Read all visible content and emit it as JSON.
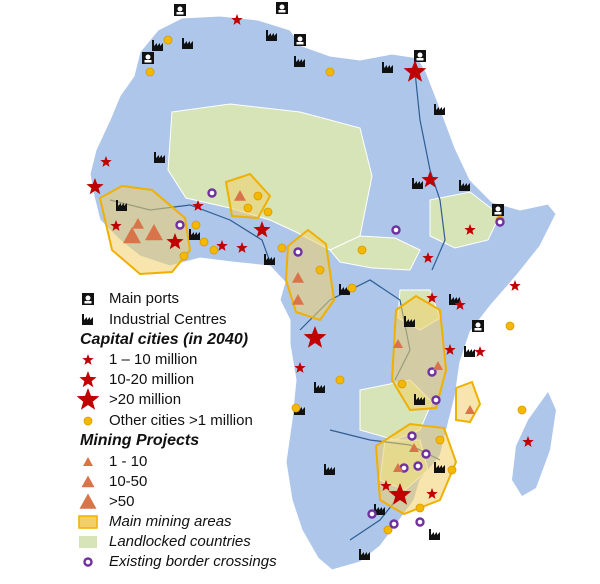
{
  "legend": {
    "main_ports": "Main ports",
    "industrial_centres": "Industrial Centres",
    "capitals_heading": "Capital cities (in 2040)",
    "capital_small": "1 – 10 million",
    "capital_mid": "10-20 million",
    "capital_large": ">20 million",
    "other_cities": "Other cities >1 million",
    "mining_heading": "Mining Projects",
    "mining_small": "1 - 10",
    "mining_mid": "10-50",
    "mining_large": ">50",
    "mining_areas": "Main mining areas",
    "landlocked": "Landlocked countries",
    "border_crossings": "Existing border crossings"
  }
}
